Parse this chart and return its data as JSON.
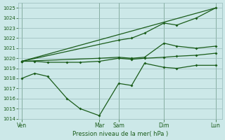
{
  "bg_color": "#cce8e8",
  "grid_color": "#99bbbb",
  "line_color": "#1a5c1a",
  "text_color": "#1a5c1a",
  "xlabel_text": "Pression niveau de la mer( hPa )",
  "ylim": [
    1014,
    1025.5
  ],
  "yticks": [
    1014,
    1015,
    1016,
    1017,
    1018,
    1019,
    1020,
    1021,
    1022,
    1023,
    1024,
    1025
  ],
  "xtick_labels": [
    "Ven",
    "Mar",
    "Sam",
    "Dim",
    "Lun"
  ],
  "xtick_positions": [
    0,
    12,
    15,
    22,
    30
  ],
  "xlim": [
    -0.5,
    31
  ],
  "series": [
    {
      "x": [
        0,
        2,
        4,
        7,
        9,
        12,
        15,
        17,
        19,
        22,
        24,
        27,
        30
      ],
      "y": [
        1018.0,
        1018.5,
        1018.2,
        1016.0,
        1015.0,
        1014.3,
        1017.5,
        1017.3,
        1019.5,
        1019.1,
        1019.0,
        1019.3,
        1019.3
      ]
    },
    {
      "x": [
        0,
        2,
        4,
        7,
        9,
        12,
        15,
        17,
        19,
        22,
        24,
        27,
        30
      ],
      "y": [
        1019.7,
        1019.7,
        1019.6,
        1019.6,
        1019.6,
        1019.7,
        1020.0,
        1019.9,
        1020.0,
        1020.1,
        1020.2,
        1020.3,
        1020.5
      ]
    },
    {
      "x": [
        0,
        12,
        15,
        17,
        19,
        22,
        24,
        27,
        30
      ],
      "y": [
        1019.7,
        1020.0,
        1020.1,
        1020.0,
        1020.1,
        1021.5,
        1021.2,
        1021.0,
        1021.2
      ]
    },
    {
      "x": [
        0,
        15,
        17,
        19,
        22,
        24,
        27,
        30
      ],
      "y": [
        1019.7,
        1021.8,
        1022.0,
        1022.5,
        1023.5,
        1023.3,
        1024.0,
        1025.0
      ]
    },
    {
      "x": [
        0,
        30
      ],
      "y": [
        1019.7,
        1025.0
      ],
      "straight": true
    }
  ]
}
